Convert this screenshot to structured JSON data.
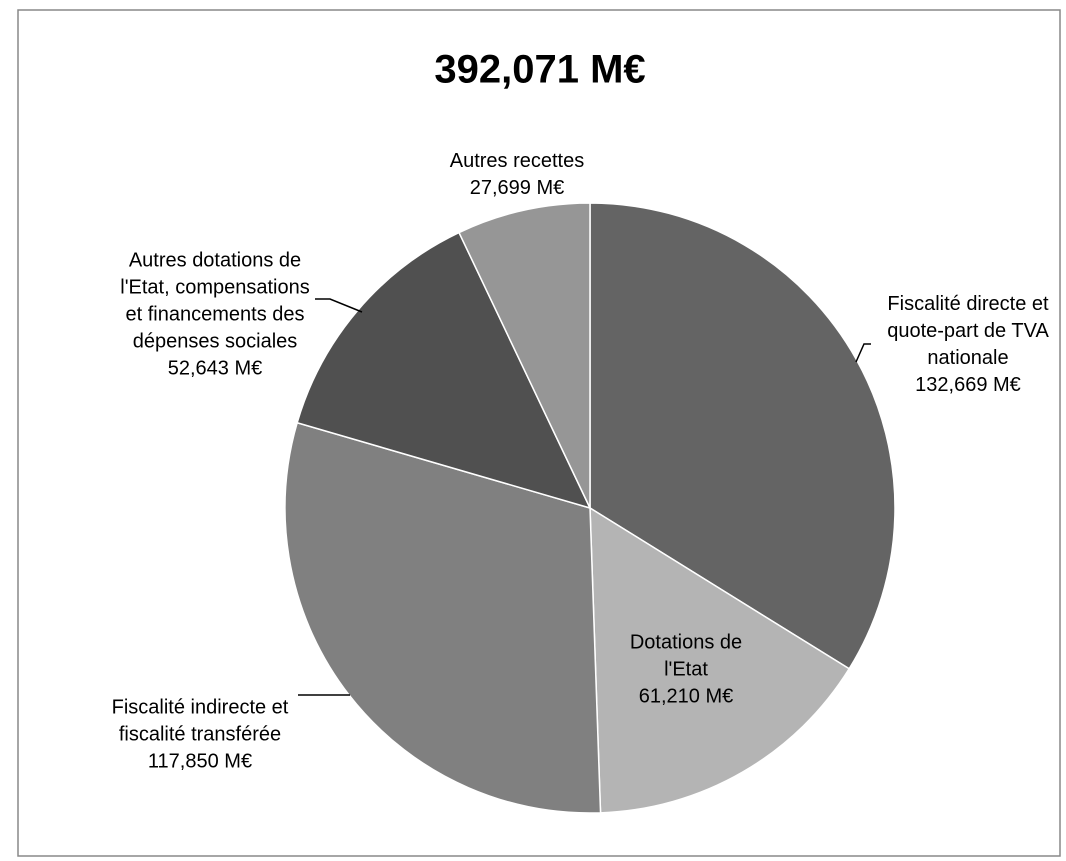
{
  "chart_data": {
    "type": "pie",
    "title": "392,071 M€",
    "categories": [
      "Fiscalité directe et quote-part de TVA nationale",
      "Dotations de l'Etat",
      "Fiscalité indirecte et fiscalité transférée",
      "Autres dotations de l'Etat, compensations et financements des dépenses sociales",
      "Autres recettes"
    ],
    "values": [
      132669,
      61210,
      117850,
      52643,
      27699
    ],
    "value_labels": [
      "132,669 M€",
      "61,210 M€",
      "117,850 M€",
      "52,643 M€",
      "27,699 M€"
    ],
    "colors": [
      "#646464",
      "#b4b4b4",
      "#808080",
      "#505050",
      "#969696"
    ]
  }
}
